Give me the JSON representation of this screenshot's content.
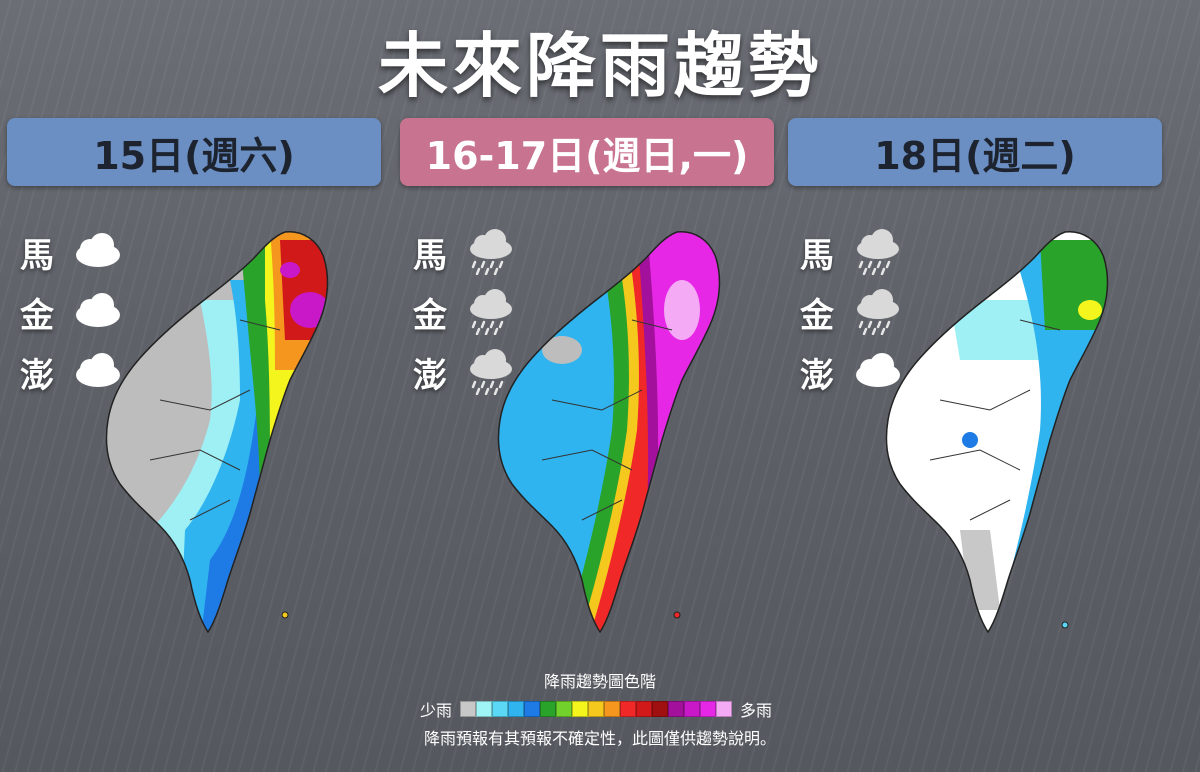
{
  "title": "未來降雨趨勢",
  "panels": [
    {
      "date_label": "15日(週六)",
      "islands": [
        {
          "name": "馬",
          "weather": "cloud-icon"
        },
        {
          "name": "金",
          "weather": "cloud-icon"
        },
        {
          "name": "澎",
          "weather": "cloud-icon"
        }
      ]
    },
    {
      "date_label": "16-17日(週日,一)",
      "islands": [
        {
          "name": "馬",
          "weather": "rain-cloud-icon"
        },
        {
          "name": "金",
          "weather": "rain-cloud-icon"
        },
        {
          "name": "澎",
          "weather": "rain-cloud-icon"
        }
      ]
    },
    {
      "date_label": "18日(週二)",
      "islands": [
        {
          "name": "馬",
          "weather": "rain-cloud-icon"
        },
        {
          "name": "金",
          "weather": "rain-cloud-icon"
        },
        {
          "name": "澎",
          "weather": "cloud-icon"
        }
      ]
    }
  ],
  "legend": {
    "title": "降雨趨勢圖色階",
    "low_label": "少雨",
    "high_label": "多雨",
    "colors": [
      "#c8c8c8",
      "#9ff5f5",
      "#5ad8f5",
      "#2fb4ef",
      "#1e7be6",
      "#2aa32a",
      "#72d12a",
      "#f5f51e",
      "#f5c81e",
      "#f5961e",
      "#f02828",
      "#d21919",
      "#a01010",
      "#a3109b",
      "#c818c8",
      "#e628e6",
      "#f5aaf5"
    ]
  },
  "note": "降雨預報有其預報不確定性，此圖僅供趨勢說明。",
  "colors": {
    "header_blue": "#6b8fc2",
    "header_pink": "#c8738f"
  }
}
